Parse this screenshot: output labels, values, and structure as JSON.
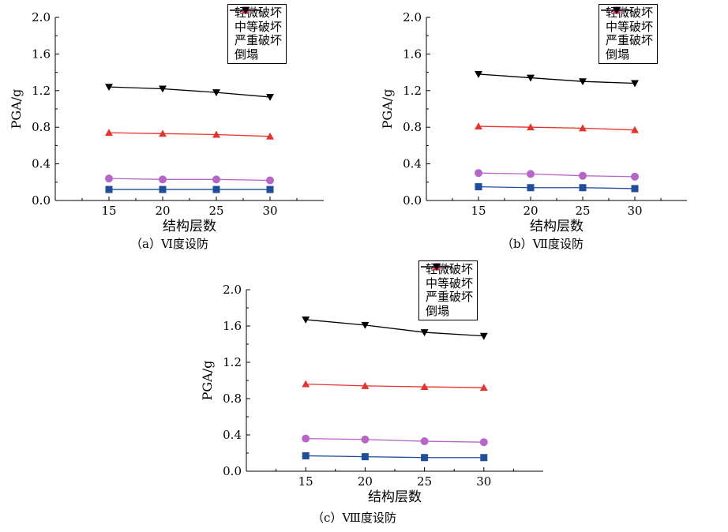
{
  "chart_data": [
    {
      "type": "line",
      "caption": "（a）Ⅵ度设防",
      "xlabel": "结构层数",
      "ylabel": "PGA/g",
      "x": [
        15,
        20,
        25,
        30
      ],
      "xlim": [
        10,
        35
      ],
      "ylim": [
        0,
        2.0
      ],
      "yticks": [
        "0.0",
        "0.4",
        "0.8",
        "1.2",
        "1.6",
        "2.0"
      ],
      "xticks": [
        "15",
        "20",
        "25",
        "30"
      ],
      "legend_position": "top-right",
      "series": [
        {
          "name": "轻微破坏",
          "color": "#1f4e9c",
          "marker": "square",
          "values": [
            0.12,
            0.12,
            0.12,
            0.12
          ]
        },
        {
          "name": "中等破坏",
          "color": "#b765c8",
          "marker": "circle",
          "values": [
            0.24,
            0.23,
            0.23,
            0.22
          ]
        },
        {
          "name": "严重破坏",
          "color": "#e8322c",
          "marker": "triangle-up",
          "values": [
            0.74,
            0.73,
            0.72,
            0.7
          ]
        },
        {
          "name": "倒塌",
          "color": "#000000",
          "marker": "triangle-down",
          "values": [
            1.24,
            1.22,
            1.18,
            1.13
          ]
        }
      ]
    },
    {
      "type": "line",
      "caption": "（b）Ⅶ度设防",
      "xlabel": "结构层数",
      "ylabel": "PGA/g",
      "x": [
        15,
        20,
        25,
        30
      ],
      "xlim": [
        10,
        35
      ],
      "ylim": [
        0,
        2.0
      ],
      "yticks": [
        "0.0",
        "0.4",
        "0.8",
        "1.2",
        "1.6",
        "2.0"
      ],
      "xticks": [
        "15",
        "20",
        "25",
        "30"
      ],
      "legend_position": "top-right",
      "series": [
        {
          "name": "轻微破坏",
          "color": "#1f4e9c",
          "marker": "square",
          "values": [
            0.15,
            0.14,
            0.14,
            0.13
          ]
        },
        {
          "name": "中等破坏",
          "color": "#b765c8",
          "marker": "circle",
          "values": [
            0.3,
            0.29,
            0.27,
            0.26
          ]
        },
        {
          "name": "严重破坏",
          "color": "#e8322c",
          "marker": "triangle-up",
          "values": [
            0.81,
            0.8,
            0.79,
            0.77
          ]
        },
        {
          "name": "倒塌",
          "color": "#000000",
          "marker": "triangle-down",
          "values": [
            1.38,
            1.34,
            1.3,
            1.28
          ]
        }
      ]
    },
    {
      "type": "line",
      "caption": "（c）Ⅷ度设防",
      "xlabel": "结构层数",
      "ylabel": "PGA/g",
      "x": [
        15,
        20,
        25,
        30
      ],
      "xlim": [
        10,
        35
      ],
      "ylim": [
        0,
        2.0
      ],
      "yticks": [
        "0.0",
        "0.4",
        "0.8",
        "1.2",
        "1.6",
        "2.0"
      ],
      "xticks": [
        "15",
        "20",
        "25",
        "30"
      ],
      "legend_position": "top-right",
      "series": [
        {
          "name": "轻微破坏",
          "color": "#1f4e9c",
          "marker": "square",
          "values": [
            0.17,
            0.16,
            0.15,
            0.15
          ]
        },
        {
          "name": "中等破坏",
          "color": "#b765c8",
          "marker": "circle",
          "values": [
            0.36,
            0.35,
            0.33,
            0.32
          ]
        },
        {
          "name": "严重破坏",
          "color": "#e8322c",
          "marker": "triangle-up",
          "values": [
            0.96,
            0.94,
            0.93,
            0.92
          ]
        },
        {
          "name": "倒塌",
          "color": "#000000",
          "marker": "triangle-down",
          "values": [
            1.67,
            1.61,
            1.53,
            1.49
          ]
        }
      ]
    }
  ]
}
